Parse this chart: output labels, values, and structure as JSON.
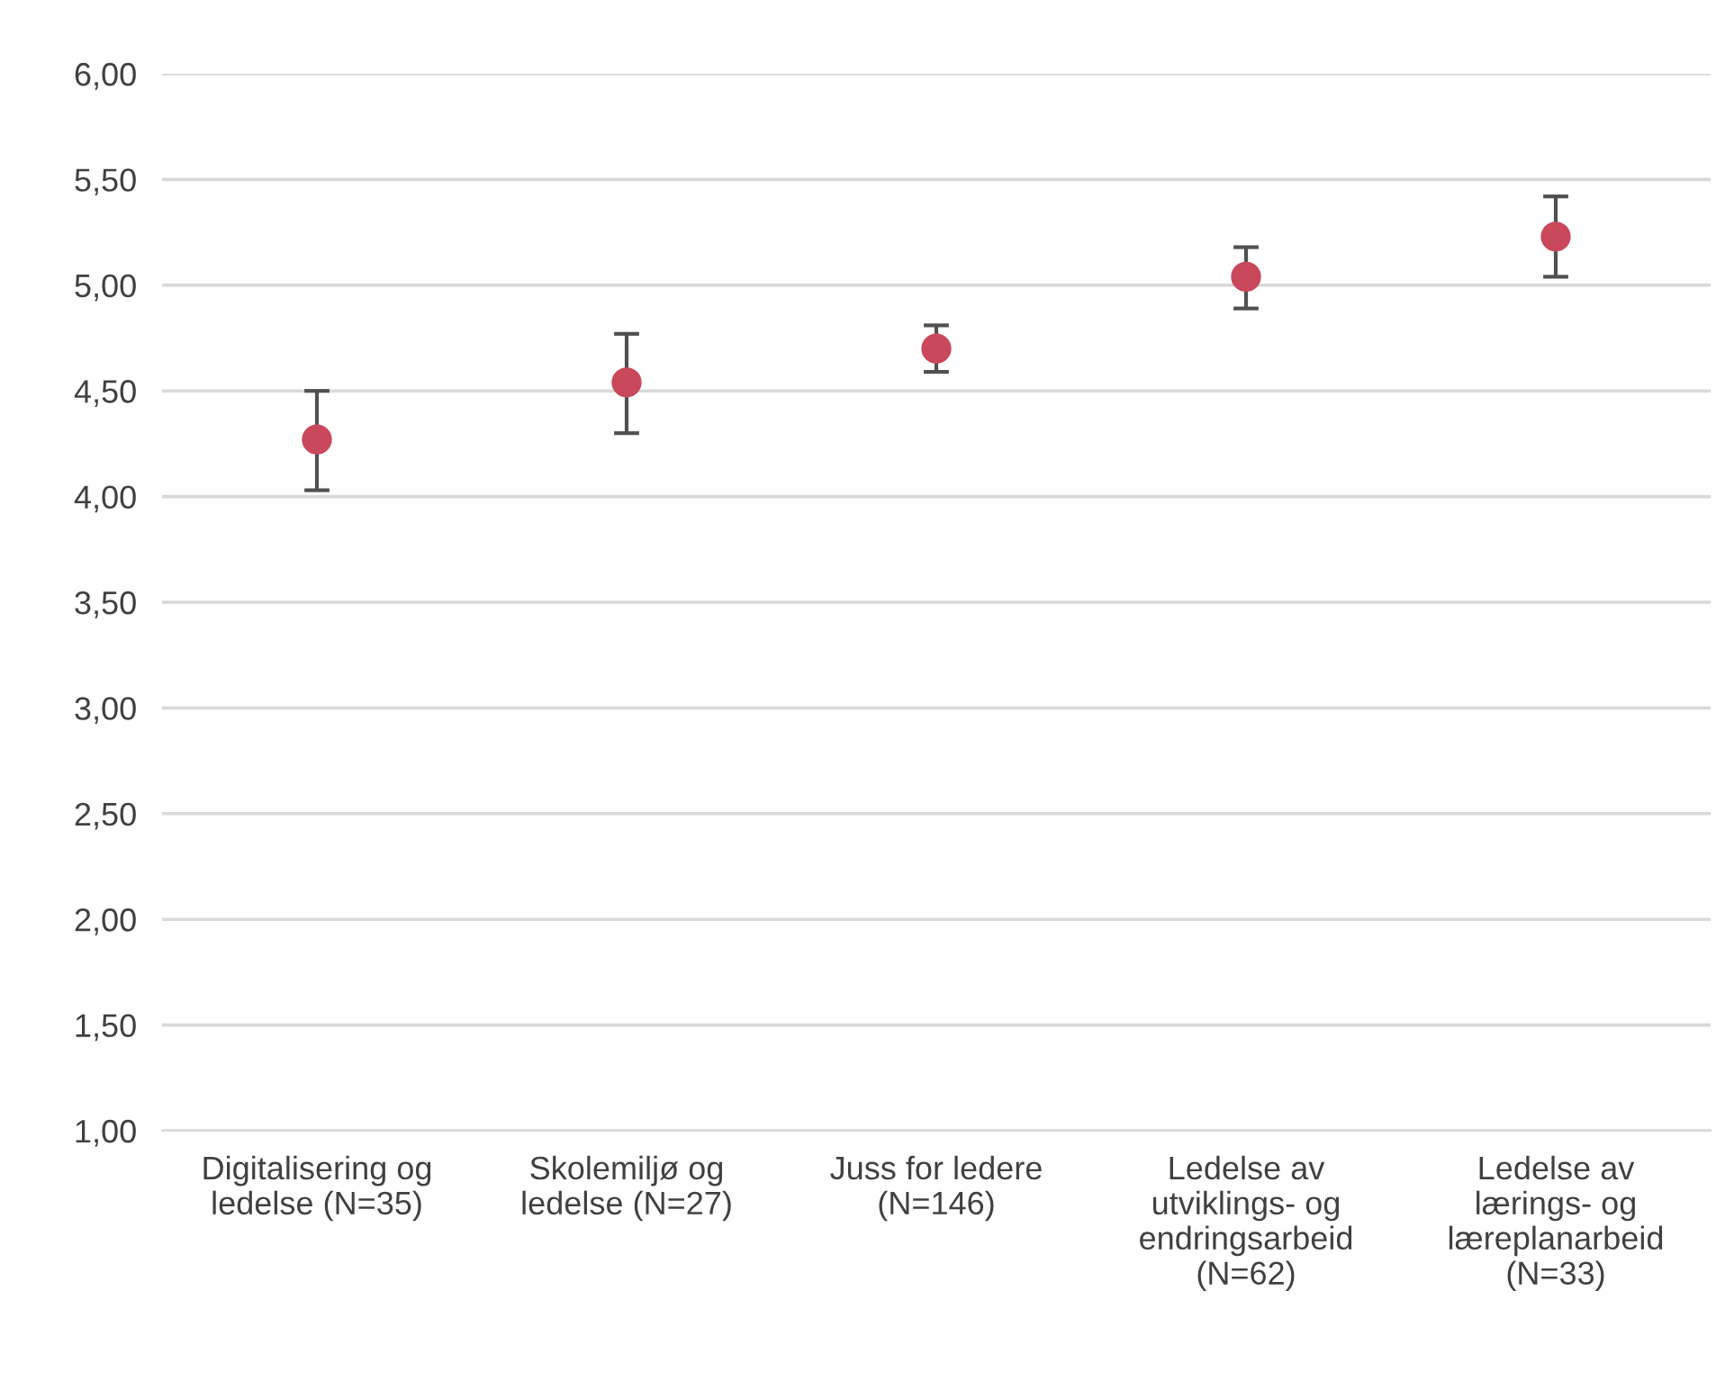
{
  "chart_data": {
    "type": "scatter",
    "categories": [
      "Digitalisering og\nledelse (N=35)",
      "Skolemiljø og\nledelse (N=27)",
      "Juss for ledere\n(N=146)",
      "Ledelse av\nutviklings- og\nendringsarbeid\n(N=62)",
      "Ledelse av\nlærings- og\nlæreplanarbeid\n(N=33)"
    ],
    "values": [
      4.27,
      4.54,
      4.7,
      5.04,
      5.23
    ],
    "errors": [
      [
        4.03,
        4.5
      ],
      [
        4.3,
        4.77
      ],
      [
        4.59,
        4.81
      ],
      [
        4.89,
        5.18
      ],
      [
        5.04,
        5.42
      ]
    ],
    "color": "#c9485b",
    "marker": "circle",
    "ylim": [
      1.0,
      6.0
    ],
    "yticks": [
      {
        "value": 1.0,
        "label": "1,00"
      },
      {
        "value": 1.5,
        "label": "1,50"
      },
      {
        "value": 2.0,
        "label": "2,00"
      },
      {
        "value": 2.5,
        "label": "2,50"
      },
      {
        "value": 3.0,
        "label": "3,00"
      },
      {
        "value": 3.5,
        "label": "3,50"
      },
      {
        "value": 4.0,
        "label": "4,00"
      },
      {
        "value": 4.5,
        "label": "4,50"
      },
      {
        "value": 5.0,
        "label": "5,00"
      },
      {
        "value": 5.5,
        "label": "5,50"
      },
      {
        "value": 6.0,
        "label": "6,00"
      }
    ],
    "grid": "y"
  }
}
